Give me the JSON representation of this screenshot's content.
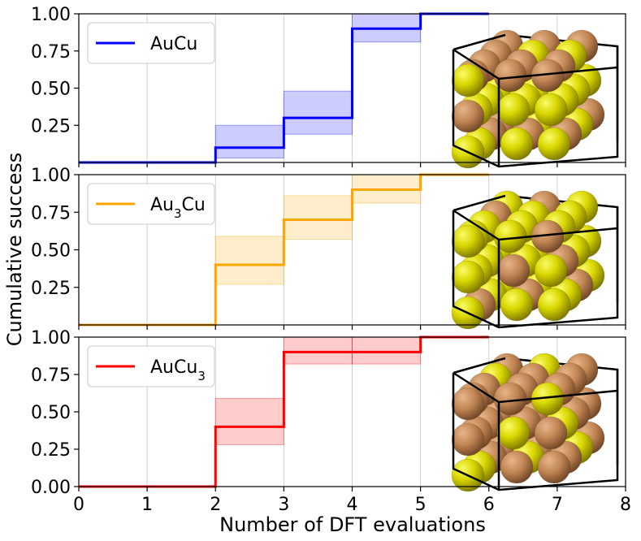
{
  "figure": {
    "ylabel": "Cumulative success",
    "xlabel": "Number of DFT evaluations"
  },
  "chart_data": [
    {
      "type": "line",
      "style": "step",
      "legend": {
        "base": "AuCu",
        "sub": ""
      },
      "legend_position": "top-left",
      "color": "#0000ff",
      "x": [
        0,
        1,
        2,
        3,
        4,
        5,
        6
      ],
      "y": [
        0.0,
        0.0,
        0.1,
        0.3,
        0.9,
        1.0,
        1.0
      ],
      "band_lower": [
        0.0,
        0.0,
        0.03,
        0.19,
        0.81,
        1.0,
        1.0
      ],
      "band_upper": [
        0.0,
        0.0,
        0.25,
        0.48,
        1.0,
        1.0,
        1.0
      ],
      "xlim": [
        0,
        8
      ],
      "ylim": [
        0,
        1
      ],
      "yticks": [
        "0.25",
        "0.50",
        "0.75",
        "1.00"
      ],
      "inset": {
        "name": "AuCu-crystal-inset",
        "pattern": "layered"
      }
    },
    {
      "type": "line",
      "style": "step",
      "legend": {
        "base": "Au",
        "sub": "3",
        "tail": "Cu"
      },
      "legend_position": "top-left",
      "color": "#ffa500",
      "x": [
        0,
        1,
        2,
        3,
        4,
        5,
        6
      ],
      "y": [
        0.0,
        0.0,
        0.4,
        0.7,
        0.9,
        1.0,
        1.0
      ],
      "band_lower": [
        0.0,
        0.0,
        0.27,
        0.57,
        0.81,
        1.0,
        1.0
      ],
      "band_upper": [
        0.0,
        0.0,
        0.59,
        0.86,
        1.0,
        1.0,
        1.0
      ],
      "xlim": [
        0,
        8
      ],
      "ylim": [
        0,
        1
      ],
      "yticks": [
        "0.25",
        "0.50",
        "0.75",
        "1.00"
      ],
      "inset": {
        "name": "Au3Cu-crystal-inset",
        "pattern": "au-rich"
      }
    },
    {
      "type": "line",
      "style": "step",
      "legend": {
        "base": "AuCu",
        "sub": "3"
      },
      "legend_position": "top-left",
      "color": "#ff0000",
      "x": [
        0,
        1,
        2,
        3,
        4,
        5,
        6
      ],
      "y": [
        0.0,
        0.0,
        0.4,
        0.9,
        0.9,
        1.0,
        1.0
      ],
      "band_lower": [
        0.0,
        0.0,
        0.28,
        0.82,
        0.82,
        1.0,
        1.0
      ],
      "band_upper": [
        0.0,
        0.0,
        0.59,
        1.0,
        1.0,
        1.0,
        1.0
      ],
      "xlim": [
        0,
        8
      ],
      "ylim": [
        0,
        1
      ],
      "yticks": [
        "0.00",
        "0.25",
        "0.50",
        "0.75",
        "1.00"
      ],
      "xticks": [
        "0",
        "1",
        "2",
        "3",
        "4",
        "5",
        "6",
        "7",
        "8"
      ],
      "inset": {
        "name": "AuCu3-crystal-inset",
        "pattern": "cu-rich"
      }
    }
  ]
}
